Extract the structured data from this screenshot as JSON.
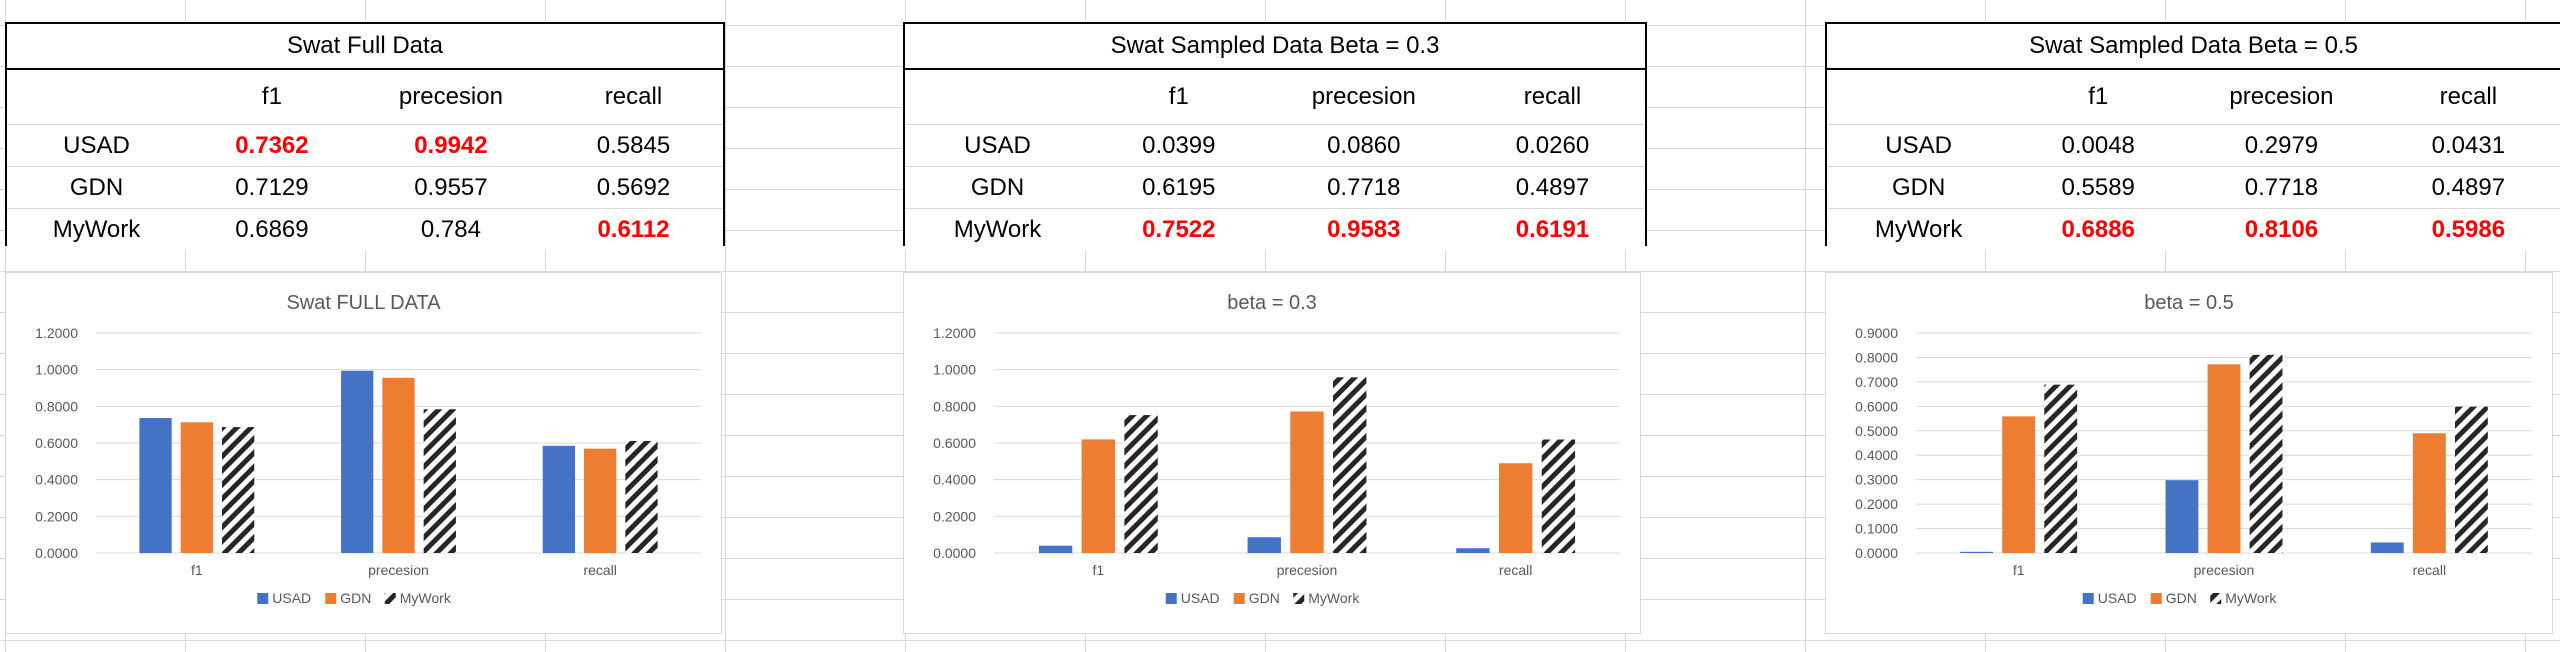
{
  "tables": [
    {
      "title": "Swat Full Data",
      "headers": [
        "",
        "f1",
        "precesion",
        "recall"
      ],
      "rows": [
        {
          "label": "USAD",
          "values": [
            "0.7362",
            "0.9942",
            "0.5845"
          ],
          "highlight": [
            true,
            true,
            false
          ]
        },
        {
          "label": "GDN",
          "values": [
            "0.7129",
            "0.9557",
            "0.5692"
          ],
          "highlight": [
            false,
            false,
            false
          ]
        },
        {
          "label": "MyWork",
          "values": [
            "0.6869",
            "0.784",
            "0.6112"
          ],
          "highlight": [
            false,
            false,
            true
          ]
        }
      ]
    },
    {
      "title": "Swat Sampled Data Beta = 0.3",
      "headers": [
        "",
        "f1",
        "precesion",
        "recall"
      ],
      "rows": [
        {
          "label": "USAD",
          "values": [
            "0.0399",
            "0.0860",
            "0.0260"
          ],
          "highlight": [
            false,
            false,
            false
          ]
        },
        {
          "label": "GDN",
          "values": [
            "0.6195",
            "0.7718",
            "0.4897"
          ],
          "highlight": [
            false,
            false,
            false
          ]
        },
        {
          "label": "MyWork",
          "values": [
            "0.7522",
            "0.9583",
            "0.6191"
          ],
          "highlight": [
            true,
            true,
            true
          ]
        }
      ]
    },
    {
      "title": "Swat Sampled Data Beta = 0.5",
      "headers": [
        "",
        "f1",
        "precesion",
        "recall"
      ],
      "rows": [
        {
          "label": "USAD",
          "values": [
            "0.0048",
            "0.2979",
            "0.0431"
          ],
          "highlight": [
            false,
            false,
            false
          ]
        },
        {
          "label": "GDN",
          "values": [
            "0.5589",
            "0.7718",
            "0.4897"
          ],
          "highlight": [
            false,
            false,
            false
          ]
        },
        {
          "label": "MyWork",
          "values": [
            "0.6886",
            "0.8106",
            "0.5986"
          ],
          "highlight": [
            true,
            true,
            true
          ]
        }
      ]
    }
  ],
  "colors": {
    "USAD": "#4472c4",
    "GDN": "#ed7d31",
    "MyWork": "#262626",
    "highlight": "#ff0000"
  },
  "chart_data": [
    {
      "type": "bar",
      "title": "Swat FULL DATA",
      "categories": [
        "f1",
        "precesion",
        "recall"
      ],
      "series": [
        {
          "name": "USAD",
          "values": [
            0.7362,
            0.9942,
            0.5845
          ]
        },
        {
          "name": "GDN",
          "values": [
            0.7129,
            0.9557,
            0.5692
          ]
        },
        {
          "name": "MyWork",
          "values": [
            0.6869,
            0.784,
            0.6112
          ],
          "pattern": "diagonal-hatch"
        }
      ],
      "ylim": [
        0,
        1.2
      ],
      "yticks": [
        "0.0000",
        "0.2000",
        "0.4000",
        "0.6000",
        "0.8000",
        "1.0000",
        "1.2000"
      ],
      "grid": true,
      "legend": "bottom"
    },
    {
      "type": "bar",
      "title": "beta = 0.3",
      "categories": [
        "f1",
        "precesion",
        "recall"
      ],
      "series": [
        {
          "name": "USAD",
          "values": [
            0.0399,
            0.086,
            0.026
          ]
        },
        {
          "name": "GDN",
          "values": [
            0.6195,
            0.7718,
            0.4897
          ]
        },
        {
          "name": "MyWork",
          "values": [
            0.7522,
            0.9583,
            0.6191
          ],
          "pattern": "diagonal-hatch"
        }
      ],
      "ylim": [
        0,
        1.2
      ],
      "yticks": [
        "0.0000",
        "0.2000",
        "0.4000",
        "0.6000",
        "0.8000",
        "1.0000",
        "1.2000"
      ],
      "grid": true,
      "legend": "bottom"
    },
    {
      "type": "bar",
      "title": "beta = 0.5",
      "categories": [
        "f1",
        "precesion",
        "recall"
      ],
      "series": [
        {
          "name": "USAD",
          "values": [
            0.0048,
            0.2979,
            0.0431
          ]
        },
        {
          "name": "GDN",
          "values": [
            0.5589,
            0.7718,
            0.4897
          ]
        },
        {
          "name": "MyWork",
          "values": [
            0.6886,
            0.8106,
            0.5986
          ],
          "pattern": "diagonal-hatch"
        }
      ],
      "ylim": [
        0,
        0.9
      ],
      "yticks": [
        "0.0000",
        "0.1000",
        "0.2000",
        "0.3000",
        "0.4000",
        "0.5000",
        "0.6000",
        "0.7000",
        "0.8000",
        "0.9000"
      ],
      "grid": true,
      "legend": "bottom"
    }
  ]
}
